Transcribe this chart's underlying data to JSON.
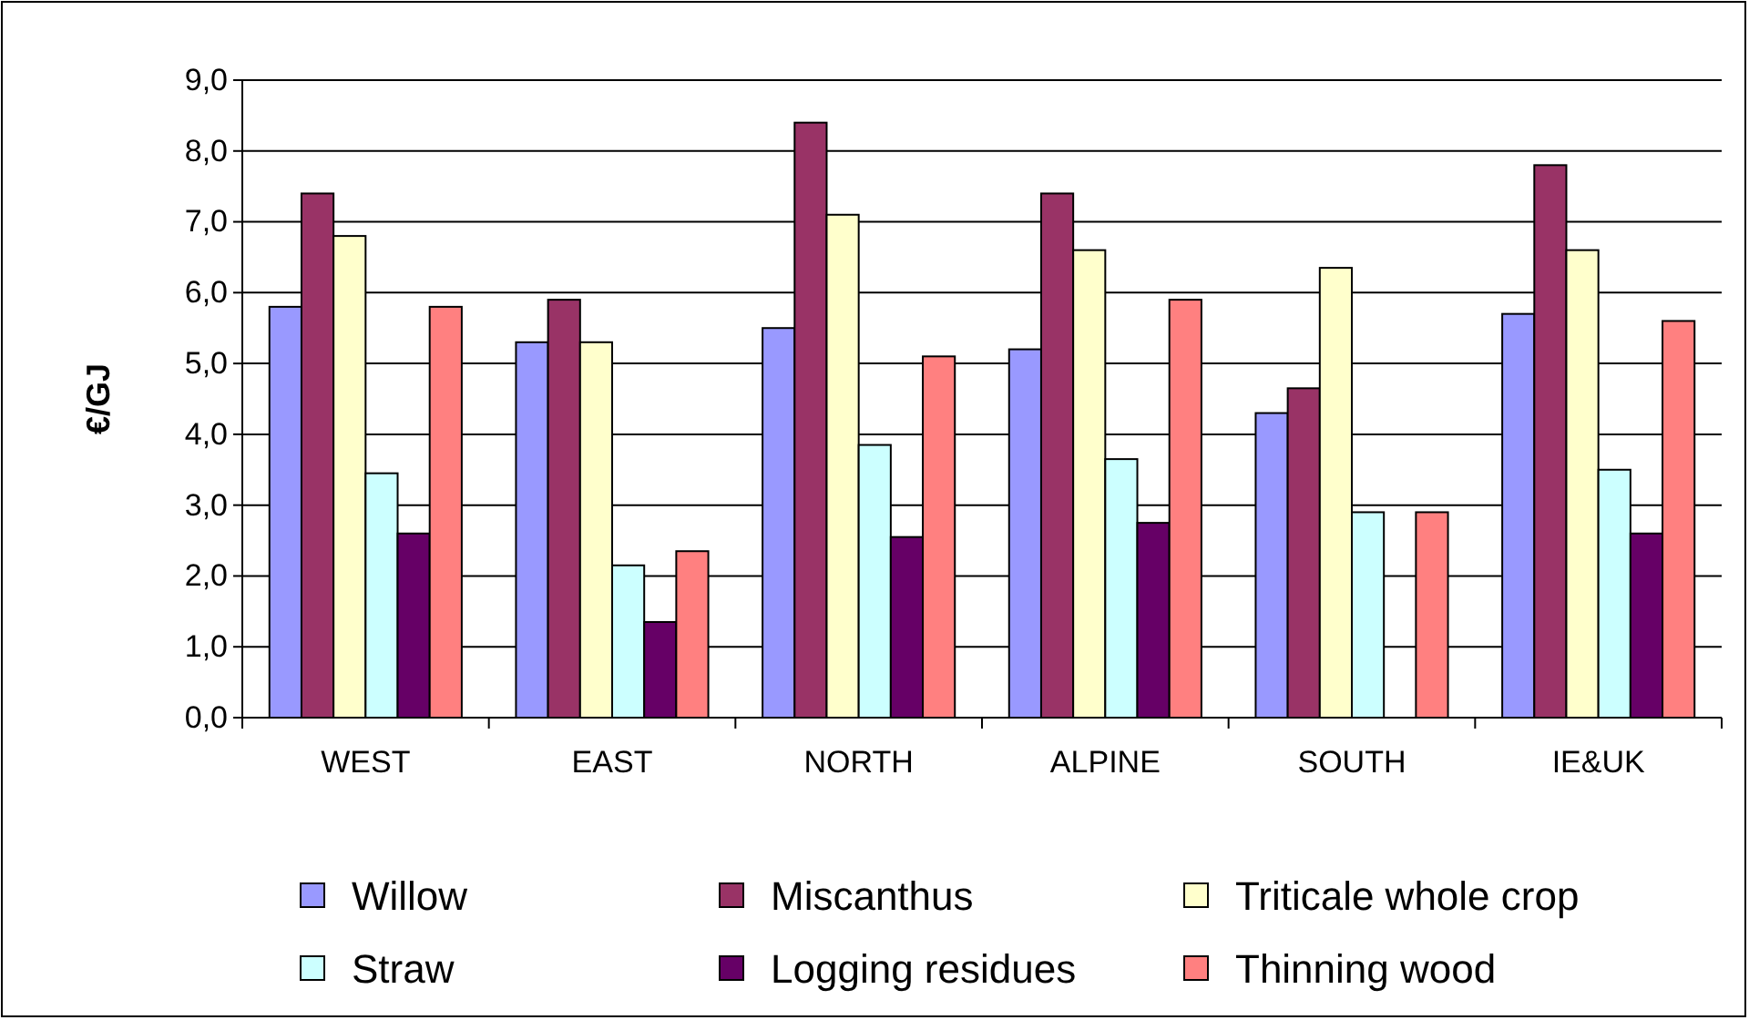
{
  "chart_data": {
    "type": "bar",
    "ylabel": "€/GJ",
    "categories": [
      "WEST",
      "EAST",
      "NORTH",
      "ALPINE",
      "SOUTH",
      "IE&UK"
    ],
    "series": [
      {
        "name": "Willow",
        "color": "#9999ff",
        "values": [
          5.8,
          5.3,
          5.5,
          5.2,
          4.3,
          5.7
        ]
      },
      {
        "name": "Miscanthus",
        "color": "#993366",
        "values": [
          7.4,
          5.9,
          8.4,
          7.4,
          4.65,
          7.8
        ]
      },
      {
        "name": "Triticale whole crop",
        "color": "#ffffcc",
        "values": [
          6.8,
          5.3,
          7.1,
          6.6,
          6.35,
          6.6
        ]
      },
      {
        "name": "Straw",
        "color": "#ccffff",
        "values": [
          3.45,
          2.15,
          3.85,
          3.65,
          2.9,
          3.5
        ]
      },
      {
        "name": "Logging residues",
        "color": "#660066",
        "values": [
          2.6,
          1.35,
          2.55,
          2.75,
          null,
          2.6
        ]
      },
      {
        "name": "Thinning wood",
        "color": "#ff8080",
        "values": [
          5.8,
          2.35,
          5.1,
          5.9,
          2.9,
          5.6
        ]
      }
    ],
    "ylim": [
      0,
      9
    ],
    "yticks": [
      {
        "value": 0,
        "label": "0,0"
      },
      {
        "value": 1,
        "label": "1,0"
      },
      {
        "value": 2,
        "label": "2,0"
      },
      {
        "value": 3,
        "label": "3,0"
      },
      {
        "value": 4,
        "label": "4,0"
      },
      {
        "value": 5,
        "label": "5,0"
      },
      {
        "value": 6,
        "label": "6,0"
      },
      {
        "value": 7,
        "label": "7,0"
      },
      {
        "value": 8,
        "label": "8,0"
      },
      {
        "value": 9,
        "label": "9,0"
      }
    ],
    "grid": "y",
    "legend": "bottom"
  }
}
